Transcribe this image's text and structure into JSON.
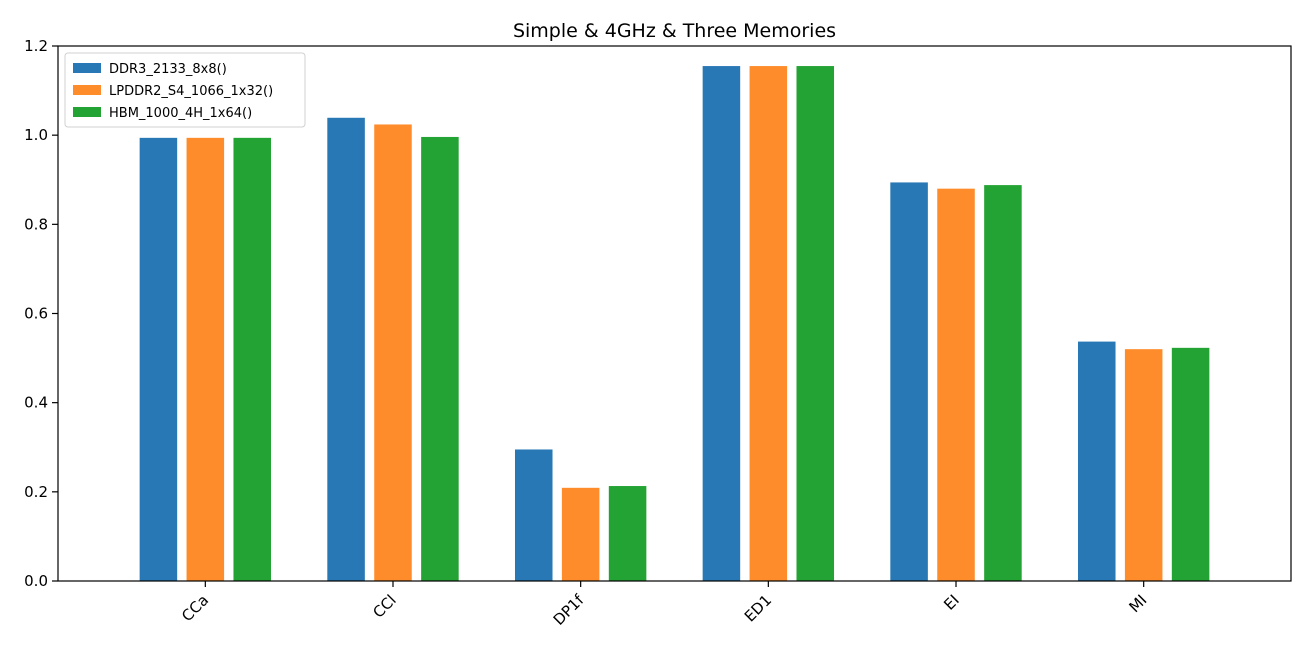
{
  "chart_data": {
    "type": "bar",
    "title": "Simple & 4GHz & Three Memories",
    "xlabel": "",
    "ylabel": "",
    "categories": [
      "CCa",
      "CCl",
      "DP1f",
      "ED1",
      "EI",
      "MI"
    ],
    "series": [
      {
        "name": "DDR3_2133_8x8()",
        "color": "#2878b5",
        "values": [
          0.994,
          1.039,
          0.295,
          1.155,
          0.894,
          0.537
        ]
      },
      {
        "name": "LPDDR2_S4_1066_1x32()",
        "color": "#ff8c2b",
        "values": [
          0.994,
          1.024,
          0.209,
          1.155,
          0.88,
          0.52
        ]
      },
      {
        "name": "HBM_1000_4H_1x64()",
        "color": "#23a333",
        "values": [
          0.994,
          0.996,
          0.213,
          1.155,
          0.888,
          0.523
        ]
      }
    ],
    "ylim": [
      0,
      1.2
    ],
    "yticks": [
      0.0,
      0.2,
      0.4,
      0.6,
      0.8,
      1.0,
      1.2
    ],
    "ytick_labels": [
      "0.0",
      "0.2",
      "0.4",
      "0.6",
      "0.8",
      "1.0",
      "1.2"
    ],
    "grid": false,
    "legend_position": "top-left"
  }
}
